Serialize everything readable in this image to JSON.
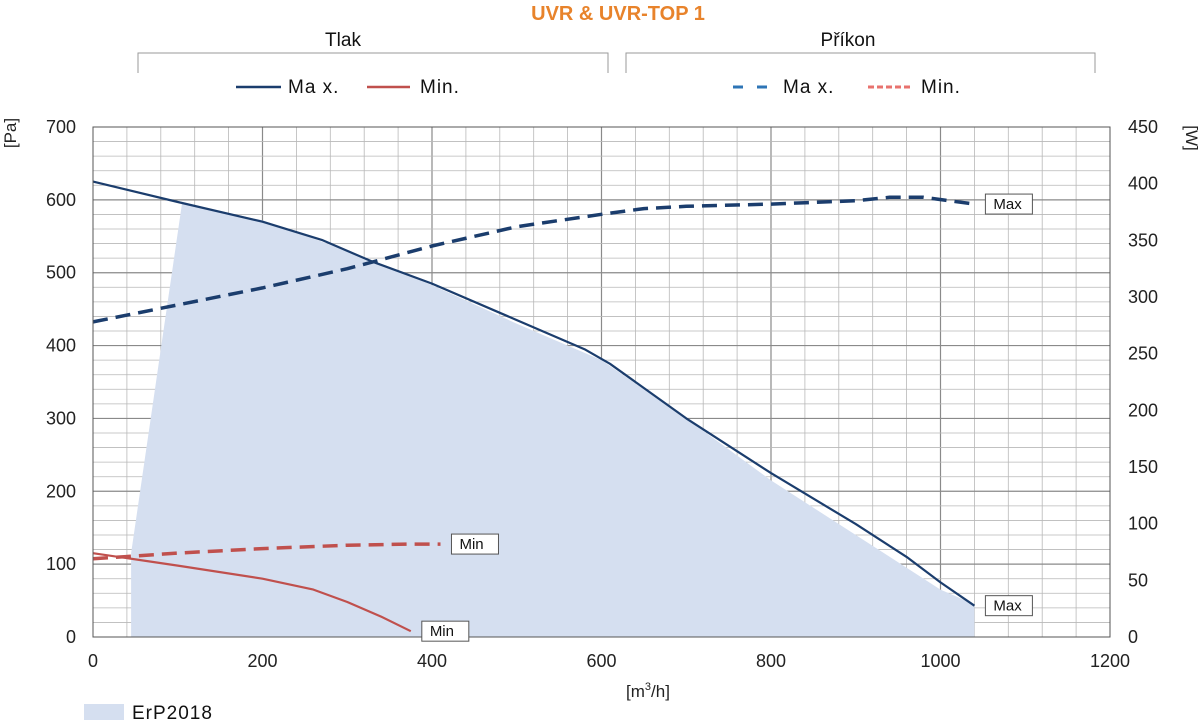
{
  "chart_data": {
    "type": "line",
    "title": "UVR & UVR-TOP 1",
    "title_color": "#e8832b",
    "group_left": "Tlak",
    "group_right": "Příkon",
    "xlabel_main": "[m",
    "xlabel_sup": "3",
    "xlabel_tail": "/h]",
    "ylabel_left": "[Pa]",
    "ylabel_right": "[W]",
    "xlim": [
      0,
      1200
    ],
    "ylim_left": [
      0,
      700
    ],
    "ylim_right": [
      0,
      450
    ],
    "x_ticks": [
      "0",
      "200",
      "400",
      "600",
      "800",
      "1000",
      "1200"
    ],
    "y_left_ticks": [
      "0",
      "100",
      "200",
      "300",
      "400",
      "500",
      "600",
      "700"
    ],
    "y_right_ticks": [
      "0",
      "50",
      "100",
      "150",
      "200",
      "250",
      "300",
      "350",
      "400",
      "450"
    ],
    "grid": true,
    "legend": [
      {
        "label": "Ma x.",
        "color": "#1b3d6d",
        "style": "solid"
      },
      {
        "label": "Min.",
        "color": "#c0504d",
        "style": "solid"
      },
      {
        "label": "Ma x.",
        "color": "#2e75b6",
        "style": "dashed"
      },
      {
        "label": "Min.",
        "color": "#e8726e",
        "style": "dashed"
      }
    ],
    "area": {
      "name": "ErP2018",
      "color": "#d5dff0",
      "points": [
        [
          45,
          0
        ],
        [
          45,
          115
        ],
        [
          105,
          595
        ],
        [
          200,
          572
        ],
        [
          300,
          530
        ],
        [
          400,
          483
        ],
        [
          500,
          430
        ],
        [
          600,
          380
        ],
        [
          700,
          300
        ],
        [
          800,
          215
        ],
        [
          900,
          140
        ],
        [
          1000,
          65
        ],
        [
          1040,
          45
        ],
        [
          1040,
          0
        ]
      ]
    },
    "series": [
      {
        "axis": "left",
        "color": "#1b3d6d",
        "style": "solid",
        "label": "Max",
        "points": [
          [
            0,
            625
          ],
          [
            100,
            597
          ],
          [
            200,
            570
          ],
          [
            270,
            545
          ],
          [
            330,
            515
          ],
          [
            400,
            485
          ],
          [
            500,
            435
          ],
          [
            580,
            395
          ],
          [
            610,
            375
          ],
          [
            700,
            300
          ],
          [
            800,
            225
          ],
          [
            900,
            155
          ],
          [
            960,
            110
          ],
          [
            1000,
            75
          ],
          [
            1040,
            43
          ]
        ]
      },
      {
        "axis": "left",
        "color": "#c0504d",
        "style": "solid",
        "label": "Min",
        "points": [
          [
            0,
            115
          ],
          [
            100,
            98
          ],
          [
            200,
            80
          ],
          [
            260,
            65
          ],
          [
            300,
            48
          ],
          [
            340,
            28
          ],
          [
            375,
            8
          ]
        ]
      },
      {
        "axis": "right",
        "color": "#1b3d6d",
        "style": "dashed",
        "label": "Max",
        "points": [
          [
            0,
            278
          ],
          [
            100,
            293
          ],
          [
            200,
            308
          ],
          [
            300,
            325
          ],
          [
            400,
            345
          ],
          [
            500,
            362
          ],
          [
            600,
            373
          ],
          [
            650,
            378
          ],
          [
            700,
            380
          ],
          [
            800,
            382
          ],
          [
            900,
            385
          ],
          [
            940,
            388
          ],
          [
            980,
            388
          ],
          [
            1040,
            382
          ]
        ]
      },
      {
        "axis": "right",
        "color": "#c0504d",
        "style": "dashed",
        "label": "Min",
        "points": [
          [
            0,
            69
          ],
          [
            100,
            74
          ],
          [
            200,
            78
          ],
          [
            300,
            81
          ],
          [
            375,
            82
          ],
          [
            410,
            82
          ]
        ]
      }
    ]
  }
}
